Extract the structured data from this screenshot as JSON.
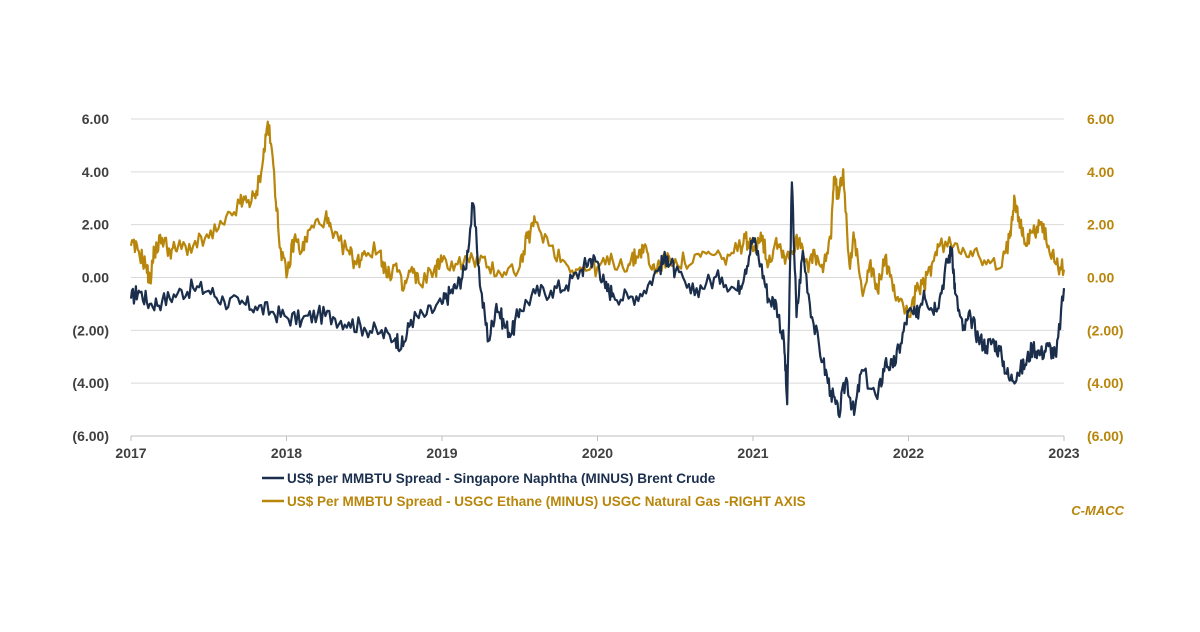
{
  "chart_data": {
    "type": "line",
    "title": "",
    "xlabel": "",
    "ylabel": "",
    "x_range": [
      2017.0,
      2023.0
    ],
    "x_ticks": [
      "2017",
      "2018",
      "2019",
      "2020",
      "2021",
      "2022",
      "2023"
    ],
    "ylim_left": [
      -6,
      6
    ],
    "ylim_right": [
      -6,
      6
    ],
    "y_ticks_left": [
      "6.00",
      "4.00",
      "2.00",
      "0.00",
      "(2.00)",
      "(4.00)",
      "(6.00)"
    ],
    "y_ticks_right": [
      "6.00",
      "4.00",
      "2.00",
      "0.00",
      "(2.00)",
      "(4.00)",
      "(6.00)"
    ],
    "grid": "horizontal",
    "legend_position": "bottom",
    "series": [
      {
        "name": "US$ per MMBTU Spread - Singapore Naphtha (MINUS) Brent Crude",
        "axis": "left",
        "color": "#1b2f4d",
        "points": [
          [
            2017.0,
            -0.8
          ],
          [
            2017.05,
            -0.5
          ],
          [
            2017.12,
            -1.0
          ],
          [
            2017.2,
            -0.9
          ],
          [
            2017.3,
            -0.6
          ],
          [
            2017.4,
            -0.4
          ],
          [
            2017.5,
            -0.5
          ],
          [
            2017.6,
            -0.9
          ],
          [
            2017.7,
            -1.0
          ],
          [
            2017.8,
            -1.1
          ],
          [
            2017.9,
            -1.3
          ],
          [
            2018.0,
            -1.5
          ],
          [
            2018.1,
            -1.6
          ],
          [
            2018.2,
            -1.4
          ],
          [
            2018.3,
            -1.5
          ],
          [
            2018.4,
            -1.7
          ],
          [
            2018.5,
            -1.9
          ],
          [
            2018.6,
            -2.1
          ],
          [
            2018.7,
            -2.3
          ],
          [
            2018.75,
            -2.6
          ],
          [
            2018.8,
            -1.6
          ],
          [
            2018.9,
            -1.4
          ],
          [
            2019.0,
            -1.0
          ],
          [
            2019.05,
            -0.6
          ],
          [
            2019.1,
            -0.3
          ],
          [
            2019.15,
            0.3
          ],
          [
            2019.2,
            2.8
          ],
          [
            2019.25,
            -0.5
          ],
          [
            2019.3,
            -2.4
          ],
          [
            2019.35,
            -1.0
          ],
          [
            2019.4,
            -1.8
          ],
          [
            2019.45,
            -2.1
          ],
          [
            2019.5,
            -1.2
          ],
          [
            2019.6,
            -0.6
          ],
          [
            2019.7,
            -0.5
          ],
          [
            2019.8,
            -0.3
          ],
          [
            2019.9,
            0.3
          ],
          [
            2019.95,
            0.7
          ],
          [
            2020.0,
            0.6
          ],
          [
            2020.05,
            -0.4
          ],
          [
            2020.1,
            -0.6
          ],
          [
            2020.2,
            -0.8
          ],
          [
            2020.3,
            -0.5
          ],
          [
            2020.4,
            0.4
          ],
          [
            2020.45,
            0.8
          ],
          [
            2020.5,
            0.2
          ],
          [
            2020.6,
            -0.6
          ],
          [
            2020.7,
            -0.2
          ],
          [
            2020.8,
            0.0
          ],
          [
            2020.9,
            -0.5
          ],
          [
            2020.95,
            0.3
          ],
          [
            2021.0,
            1.5
          ],
          [
            2021.05,
            0.5
          ],
          [
            2021.1,
            -0.8
          ],
          [
            2021.15,
            -1.0
          ],
          [
            2021.2,
            -2.5
          ],
          [
            2021.22,
            -4.8
          ],
          [
            2021.25,
            3.6
          ],
          [
            2021.28,
            -1.5
          ],
          [
            2021.32,
            1.0
          ],
          [
            2021.38,
            -1.5
          ],
          [
            2021.45,
            -3.2
          ],
          [
            2021.5,
            -4.3
          ],
          [
            2021.55,
            -5.2
          ],
          [
            2021.6,
            -3.8
          ],
          [
            2021.65,
            -5.2
          ],
          [
            2021.7,
            -3.5
          ],
          [
            2021.8,
            -4.6
          ],
          [
            2021.85,
            -3.2
          ],
          [
            2021.9,
            -3.4
          ],
          [
            2021.95,
            -2.5
          ],
          [
            2022.0,
            -1.3
          ],
          [
            2022.05,
            -1.5
          ],
          [
            2022.1,
            -0.5
          ],
          [
            2022.15,
            -1.2
          ],
          [
            2022.2,
            -0.8
          ],
          [
            2022.25,
            0.6
          ],
          [
            2022.28,
            1.1
          ],
          [
            2022.3,
            -0.6
          ],
          [
            2022.35,
            -2.0
          ],
          [
            2022.4,
            -1.5
          ],
          [
            2022.45,
            -2.3
          ],
          [
            2022.5,
            -2.6
          ],
          [
            2022.55,
            -2.4
          ],
          [
            2022.6,
            -3.0
          ],
          [
            2022.65,
            -3.9
          ],
          [
            2022.7,
            -3.6
          ],
          [
            2022.75,
            -3.3
          ],
          [
            2022.8,
            -2.6
          ],
          [
            2022.85,
            -2.9
          ],
          [
            2022.9,
            -2.6
          ],
          [
            2022.95,
            -3.0
          ],
          [
            2023.0,
            -0.4
          ]
        ]
      },
      {
        "name": "US$ Per MMBTU Spread - USGC Ethane (MINUS) USGC Natural Gas -RIGHT AXIS",
        "axis": "right",
        "color": "#b8860b",
        "points": [
          [
            2017.0,
            1.2
          ],
          [
            2017.05,
            1.0
          ],
          [
            2017.1,
            0.4
          ],
          [
            2017.12,
            -0.2
          ],
          [
            2017.15,
            1.0
          ],
          [
            2017.2,
            1.5
          ],
          [
            2017.25,
            1.0
          ],
          [
            2017.3,
            1.1
          ],
          [
            2017.4,
            1.2
          ],
          [
            2017.5,
            1.5
          ],
          [
            2017.6,
            2.0
          ],
          [
            2017.7,
            2.8
          ],
          [
            2017.75,
            2.9
          ],
          [
            2017.8,
            3.0
          ],
          [
            2017.85,
            4.5
          ],
          [
            2017.88,
            5.9
          ],
          [
            2017.92,
            4.0
          ],
          [
            2017.95,
            1.6
          ],
          [
            2018.0,
            0.0
          ],
          [
            2018.05,
            1.5
          ],
          [
            2018.1,
            1.0
          ],
          [
            2018.15,
            1.8
          ],
          [
            2018.25,
            2.3
          ],
          [
            2018.3,
            1.5
          ],
          [
            2018.4,
            1.0
          ],
          [
            2018.45,
            0.5
          ],
          [
            2018.5,
            1.0
          ],
          [
            2018.6,
            1.0
          ],
          [
            2018.65,
            0.0
          ],
          [
            2018.7,
            0.5
          ],
          [
            2018.75,
            -0.5
          ],
          [
            2018.8,
            0.3
          ],
          [
            2018.85,
            -0.2
          ],
          [
            2018.95,
            0.3
          ],
          [
            2019.0,
            0.6
          ],
          [
            2019.1,
            0.5
          ],
          [
            2019.2,
            0.7
          ],
          [
            2019.3,
            0.4
          ],
          [
            2019.4,
            0.2
          ],
          [
            2019.5,
            0.4
          ],
          [
            2019.55,
            1.5
          ],
          [
            2019.6,
            2.1
          ],
          [
            2019.7,
            1.2
          ],
          [
            2019.8,
            0.5
          ],
          [
            2019.9,
            0.3
          ],
          [
            2020.0,
            0.4
          ],
          [
            2020.1,
            0.6
          ],
          [
            2020.2,
            0.5
          ],
          [
            2020.25,
            0.8
          ],
          [
            2020.3,
            1.2
          ],
          [
            2020.35,
            0.3
          ],
          [
            2020.4,
            0.5
          ],
          [
            2020.5,
            0.7
          ],
          [
            2020.6,
            0.5
          ],
          [
            2020.7,
            0.9
          ],
          [
            2020.8,
            0.7
          ],
          [
            2020.9,
            1.0
          ],
          [
            2020.95,
            1.5
          ],
          [
            2021.0,
            1.0
          ],
          [
            2021.05,
            1.7
          ],
          [
            2021.1,
            0.5
          ],
          [
            2021.15,
            1.5
          ],
          [
            2021.2,
            0.8
          ],
          [
            2021.25,
            1.0
          ],
          [
            2021.3,
            1.5
          ],
          [
            2021.35,
            0.5
          ],
          [
            2021.4,
            0.8
          ],
          [
            2021.45,
            0.2
          ],
          [
            2021.5,
            1.5
          ],
          [
            2021.52,
            3.8
          ],
          [
            2021.55,
            3.0
          ],
          [
            2021.58,
            4.1
          ],
          [
            2021.62,
            0.5
          ],
          [
            2021.65,
            1.5
          ],
          [
            2021.7,
            -0.5
          ],
          [
            2021.75,
            0.5
          ],
          [
            2021.8,
            -0.5
          ],
          [
            2021.85,
            0.8
          ],
          [
            2021.9,
            -0.5
          ],
          [
            2021.95,
            -0.8
          ],
          [
            2022.0,
            -1.5
          ],
          [
            2022.05,
            -0.5
          ],
          [
            2022.1,
            -0.3
          ],
          [
            2022.15,
            0.5
          ],
          [
            2022.2,
            1.2
          ],
          [
            2022.3,
            1.3
          ],
          [
            2022.4,
            1.0
          ],
          [
            2022.5,
            0.5
          ],
          [
            2022.6,
            0.4
          ],
          [
            2022.65,
            1.5
          ],
          [
            2022.68,
            3.1
          ],
          [
            2022.72,
            2.0
          ],
          [
            2022.75,
            1.3
          ],
          [
            2022.8,
            1.7
          ],
          [
            2022.85,
            2.1
          ],
          [
            2022.9,
            1.2
          ],
          [
            2022.95,
            0.5
          ],
          [
            2023.0,
            0.3
          ]
        ]
      }
    ],
    "source_note": "C-MACC"
  }
}
